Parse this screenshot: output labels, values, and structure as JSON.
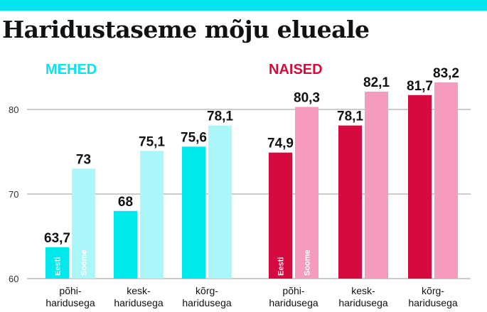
{
  "title": "Haridustaseme mõju elueale",
  "colors": {
    "accent": "#00e5ee",
    "mehed_eesti": "#00e8ec",
    "mehed_soome": "#aaf6f8",
    "naised_eesti": "#d50b3f",
    "naised_soome": "#f59bbf",
    "mehed_label": "#00e5ee",
    "naised_label": "#d50b3f",
    "grid": "#9a9a9a"
  },
  "chart_data": {
    "type": "bar",
    "title": "Haridustaseme mõju elueale",
    "xlabel": "",
    "ylabel": "",
    "ylim": [
      60,
      85
    ],
    "yticks": [
      60,
      70,
      80
    ],
    "grid": true,
    "groups": [
      {
        "name": "MEHED",
        "categories": [
          "põhi-\nharidusega",
          "kesk-\nharidusega",
          "kõrg-\nharidusega"
        ],
        "series": [
          {
            "name": "Eesti",
            "values": [
              63.7,
              68,
              75.6
            ],
            "labels": [
              "63,7",
              "68",
              "75,6"
            ]
          },
          {
            "name": "Soome",
            "values": [
              73,
              75.1,
              78.1
            ],
            "labels": [
              "73",
              "75,1",
              "78,1"
            ]
          }
        ]
      },
      {
        "name": "NAISED",
        "categories": [
          "põhi-\nharidusega",
          "kesk-\nharidusega",
          "kõrg-\nharidusega"
        ],
        "series": [
          {
            "name": "Eesti",
            "values": [
              74.9,
              78.1,
              81.7
            ],
            "labels": [
              "74,9",
              "78,1",
              "81,7"
            ]
          },
          {
            "name": "Soome",
            "values": [
              80.3,
              82.1,
              83.2
            ],
            "labels": [
              "80,3",
              "82,1",
              "83,2"
            ]
          }
        ]
      }
    ]
  }
}
